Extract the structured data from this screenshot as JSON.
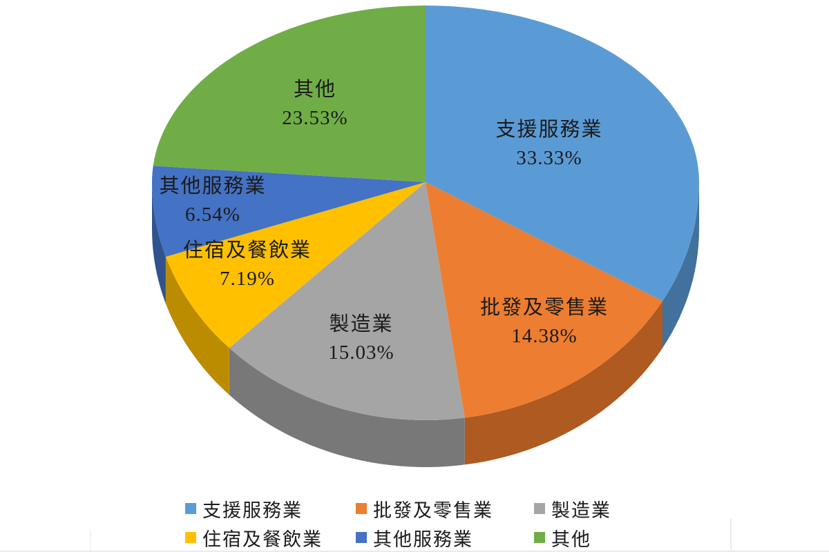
{
  "chart_data": {
    "type": "pie",
    "variant": "3d",
    "title": "",
    "legend_position": "bottom",
    "categories": [
      "支援服務業",
      "批發及零售業",
      "製造業",
      "住宿及餐飲業",
      "其他服務業",
      "其他"
    ],
    "values": [
      33.33,
      14.38,
      15.03,
      7.19,
      6.54,
      23.53
    ],
    "slices": [
      {
        "label": "支援服務業",
        "value": 33.33,
        "percent_label": "33.33%",
        "color": "#5B9BD5",
        "side_color": "#41719C"
      },
      {
        "label": "批發及零售業",
        "value": 14.38,
        "percent_label": "14.38%",
        "color": "#ED7D31",
        "side_color": "#AE5A21"
      },
      {
        "label": "製造業",
        "value": 15.03,
        "percent_label": "15.03%",
        "color": "#A5A5A5",
        "side_color": "#787878"
      },
      {
        "label": "住宿及餐飲業",
        "value": 7.19,
        "percent_label": "7.19%",
        "color": "#FFC000",
        "side_color": "#BC8C00"
      },
      {
        "label": "其他服務業",
        "value": 6.54,
        "percent_label": "6.54%",
        "color": "#4472C4",
        "side_color": "#2F538F"
      },
      {
        "label": "其他",
        "value": 23.53,
        "percent_label": "23.53%",
        "color": "#70AD47",
        "side_color": "#507E32"
      }
    ],
    "legend_rows": [
      [
        "支援服務業",
        "批發及零售業",
        "製造業"
      ],
      [
        "住宿及餐飲業",
        "其他服務業",
        "其他"
      ]
    ]
  }
}
